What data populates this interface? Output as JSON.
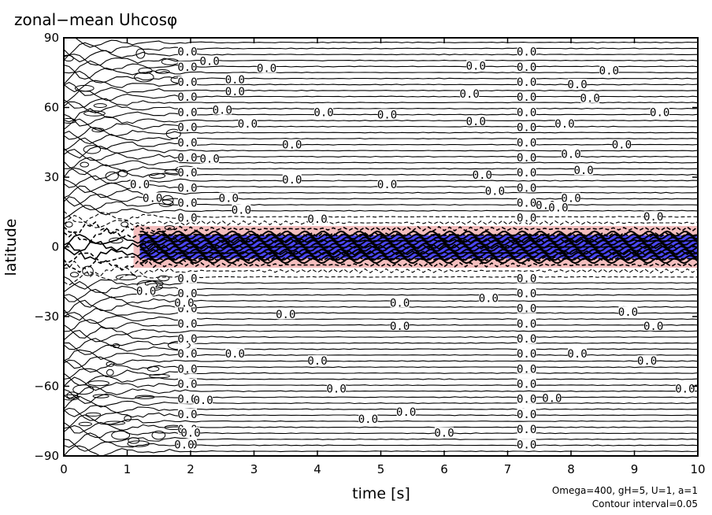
{
  "chart_data": {
    "type": "heatmap",
    "title": "zonal−mean Uhcosφ",
    "xlabel": "time [s]",
    "ylabel": "latitude",
    "x_ticks": [
      "0",
      "1",
      "2",
      "3",
      "4",
      "5",
      "6",
      "7",
      "8",
      "9",
      "10"
    ],
    "y_ticks": [
      "90",
      "60",
      "30",
      "0",
      "−30",
      "−60",
      "−90"
    ],
    "xlim": [
      0,
      10
    ],
    "ylim": [
      -90,
      90
    ],
    "contour_interval": 0.05,
    "contour_label": "0.0",
    "parameters_note": "Omega=400, gH=5, U=1, a=1",
    "interval_note": "Contour interval=0.05",
    "colors": {
      "positive_shading": "#f2b3b3",
      "negative_shading": "#3a3aff",
      "contour": "#000000"
    }
  }
}
